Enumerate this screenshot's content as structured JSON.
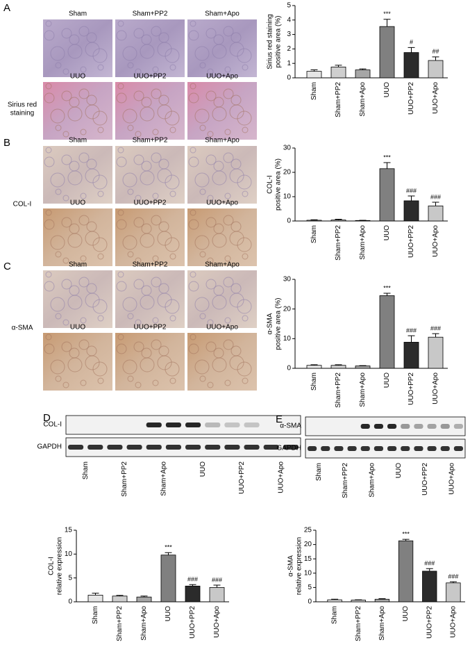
{
  "panels": [
    {
      "letter": "A",
      "row_label": [
        "Sirius red",
        "staining"
      ],
      "image_labels": [
        [
          "Sham",
          "Sham+PP2",
          "Sham+Apo"
        ],
        [
          "UUO",
          "UUO+PP2",
          "UUO+Apo"
        ]
      ]
    },
    {
      "letter": "B",
      "row_label": [
        "COL-I"
      ],
      "image_labels": [
        [
          "Sham",
          "Sham+PP2",
          "Sham+Apo"
        ],
        [
          "UUO",
          "UUO+PP2",
          "UUO+Apo"
        ]
      ]
    },
    {
      "letter": "C",
      "row_label": [
        "α-SMA"
      ],
      "image_labels": [
        [
          "Sham",
          "Sham+PP2",
          "Sham+Apo"
        ],
        [
          "UUO",
          "UUO+PP2",
          "UUO+Apo"
        ]
      ]
    },
    {
      "letter": "D",
      "blot": {
        "rows": [
          "COL-I",
          "GAPDH"
        ],
        "lanes": [
          "Sham",
          "Sham+PP2",
          "Sham+Apo",
          "UUO",
          "UUO+PP2",
          "UUO+Apo"
        ]
      }
    },
    {
      "letter": "E",
      "blot": {
        "rows": [
          "α-SMA",
          "GAPDH"
        ],
        "lanes": [
          "Sham",
          "Sham+PP2",
          "Sham+Apo",
          "UUO",
          "UUO+PP2",
          "UUO+Apo"
        ]
      }
    }
  ],
  "chart_data": [
    {
      "type": "bar",
      "ylabel": [
        "Sirius red staining",
        "positive area (%)"
      ],
      "categories": [
        "Sham",
        "Sham+PP2",
        "Sham+Apo",
        "UUO",
        "UUO+PP2",
        "UUO+Apo"
      ],
      "values": [
        0.45,
        0.75,
        0.55,
        3.55,
        1.75,
        1.2
      ],
      "errors": [
        0.1,
        0.12,
        0.07,
        0.5,
        0.35,
        0.25
      ],
      "annotations": [
        null,
        null,
        null,
        "***",
        "#",
        "##"
      ],
      "colors": [
        "#e6e6e6",
        "#cfcfcf",
        "#a6a6a6",
        "#808080",
        "#2b2b2b",
        "#c8c8c8"
      ],
      "ylim": [
        0,
        5
      ],
      "yticks": [
        0,
        1,
        2,
        3,
        4,
        5
      ]
    },
    {
      "type": "bar",
      "ylabel": [
        "COL-I",
        "positive area (%)"
      ],
      "categories": [
        "Sham",
        "Sham+PP2",
        "Sham+Apo",
        "UUO",
        "UUO+PP2",
        "UUO+Apo"
      ],
      "values": [
        0.3,
        0.4,
        0.2,
        21.5,
        8.3,
        6.2
      ],
      "errors": [
        0.2,
        0.3,
        0.1,
        2.5,
        2,
        1.5
      ],
      "annotations": [
        null,
        null,
        null,
        "***",
        "###",
        "###"
      ],
      "colors": [
        "#e6e6e6",
        "#cfcfcf",
        "#a6a6a6",
        "#808080",
        "#2b2b2b",
        "#c8c8c8"
      ],
      "ylim": [
        0,
        30
      ],
      "yticks": [
        0,
        10,
        20,
        30
      ]
    },
    {
      "type": "bar",
      "ylabel": [
        "α-SMA",
        "positive area (%)"
      ],
      "categories": [
        "Sham",
        "Sham+PP2",
        "Sham+Apo",
        "UUO",
        "UUO+PP2",
        "UUO+Apo"
      ],
      "values": [
        1,
        1,
        0.8,
        24.5,
        8.8,
        10.5
      ],
      "errors": [
        0.2,
        0.2,
        0.1,
        0.8,
        2.2,
        1.2
      ],
      "annotations": [
        null,
        null,
        null,
        "***",
        "###",
        "###"
      ],
      "colors": [
        "#e6e6e6",
        "#cfcfcf",
        "#a6a6a6",
        "#808080",
        "#2b2b2b",
        "#c8c8c8"
      ],
      "ylim": [
        0,
        30
      ],
      "yticks": [
        0,
        10,
        20,
        30
      ]
    },
    {
      "type": "bar",
      "ylabel": [
        "COL-I",
        "relative expression"
      ],
      "categories": [
        "Sham",
        "Sham+PP2",
        "Sham+Apo",
        "UUO",
        "UUO+PP2",
        "UUO+Apo"
      ],
      "values": [
        1.4,
        1.2,
        1.0,
        9.8,
        3.3,
        3.0
      ],
      "errors": [
        0.4,
        0.15,
        0.2,
        0.5,
        0.3,
        0.5
      ],
      "annotations": [
        null,
        null,
        null,
        "***",
        "###",
        "###"
      ],
      "colors": [
        "#e6e6e6",
        "#cfcfcf",
        "#a6a6a6",
        "#808080",
        "#2b2b2b",
        "#c8c8c8"
      ],
      "ylim": [
        0,
        15
      ],
      "yticks": [
        0,
        5,
        10,
        15
      ]
    },
    {
      "type": "bar",
      "ylabel": [
        "α-SMA",
        "relative expression"
      ],
      "categories": [
        "Sham",
        "Sham+PP2",
        "Sham+Apo",
        "UUO",
        "UUO+PP2",
        "UUO+Apo"
      ],
      "values": [
        0.7,
        0.6,
        0.9,
        21.3,
        10.7,
        6.6
      ],
      "errors": [
        0.2,
        0.1,
        0.2,
        0.5,
        0.9,
        0.4
      ],
      "annotations": [
        null,
        null,
        null,
        "***",
        "###",
        "###"
      ],
      "colors": [
        "#e6e6e6",
        "#cfcfcf",
        "#a6a6a6",
        "#808080",
        "#2b2b2b",
        "#c8c8c8"
      ],
      "ylim": [
        0,
        25
      ],
      "yticks": [
        0,
        5,
        10,
        15,
        20,
        25
      ]
    }
  ]
}
